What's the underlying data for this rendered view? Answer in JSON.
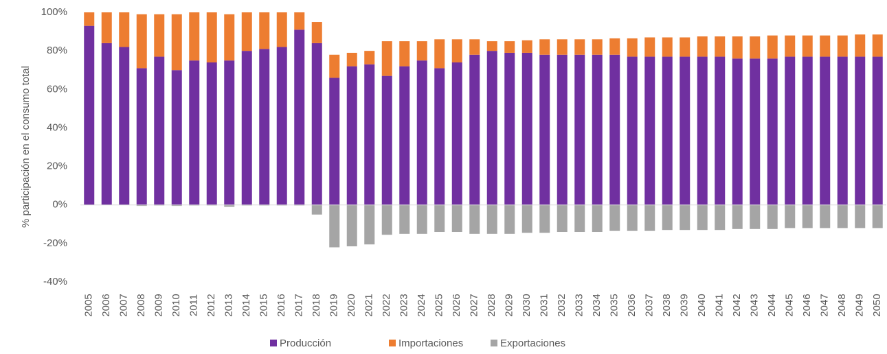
{
  "chart_data": {
    "type": "stacked_bar",
    "y_axis_label": "% participación  en el consumo total",
    "categories": [
      "2005",
      "2006",
      "2007",
      "2008",
      "2009",
      "2010",
      "2011",
      "2012",
      "2013",
      "2014",
      "2015",
      "2016",
      "2017",
      "2018",
      "2019",
      "2020",
      "2021",
      "2022",
      "2023",
      "2024",
      "2025",
      "2026",
      "2027",
      "2028",
      "2029",
      "2030",
      "2031",
      "2032",
      "2033",
      "2034",
      "2035",
      "2036",
      "2037",
      "2038",
      "2039",
      "2040",
      "2041",
      "2042",
      "2043",
      "2044",
      "2045",
      "2046",
      "2047",
      "2048",
      "2049",
      "2050"
    ],
    "series": [
      {
        "name": "Producción",
        "color": "#7030a0",
        "values": [
          93,
          84,
          82,
          71,
          77,
          70,
          75,
          74,
          75,
          80,
          81,
          82,
          91,
          84,
          66,
          72,
          73,
          67,
          72,
          75,
          71,
          74,
          78,
          80,
          79,
          79,
          78,
          78,
          78,
          78,
          78,
          77,
          77,
          77,
          77,
          77,
          77,
          76,
          76,
          76,
          77,
          77,
          77,
          77,
          77,
          77
        ]
      },
      {
        "name": "Importaciones",
        "color": "#ed7d31",
        "values": [
          7,
          16,
          18,
          28,
          22,
          29,
          25,
          26,
          24,
          20,
          19,
          18,
          9,
          11,
          12,
          7,
          7,
          18,
          13,
          10,
          15,
          12,
          8,
          5,
          6,
          6.5,
          8,
          8,
          8,
          8,
          8.5,
          9.5,
          10,
          10,
          10,
          10.5,
          10.5,
          11.5,
          11.5,
          12,
          11,
          11,
          11,
          11,
          11.5,
          11.5
        ]
      },
      {
        "name": "Exportaciones",
        "color": "#a5a5a5",
        "values": [
          0,
          0,
          0,
          -0.5,
          -0.3,
          -0.5,
          -0.3,
          -0.3,
          -1,
          -0.3,
          -0.3,
          -0.3,
          -0.3,
          -5,
          -22,
          -21.5,
          -20.5,
          -15.5,
          -15,
          -15,
          -14,
          -14,
          -15,
          -15,
          -15,
          -14.5,
          -14.5,
          -14,
          -14,
          -14,
          -13.5,
          -13.5,
          -13.5,
          -13,
          -13,
          -13,
          -13,
          -12.5,
          -12.5,
          -12.5,
          -12,
          -12,
          -12,
          -12,
          -12,
          -12
        ]
      }
    ],
    "ylim": [
      -40,
      100
    ],
    "yticks": [
      {
        "value": -40,
        "label": "-40%"
      },
      {
        "value": -20,
        "label": "-20%"
      },
      {
        "value": 0,
        "label": "0%"
      },
      {
        "value": 20,
        "label": "20%"
      },
      {
        "value": 40,
        "label": "40%"
      },
      {
        "value": 60,
        "label": "60%"
      },
      {
        "value": 80,
        "label": "80%"
      },
      {
        "value": 100,
        "label": "100%"
      }
    ],
    "legend": "bottom"
  }
}
